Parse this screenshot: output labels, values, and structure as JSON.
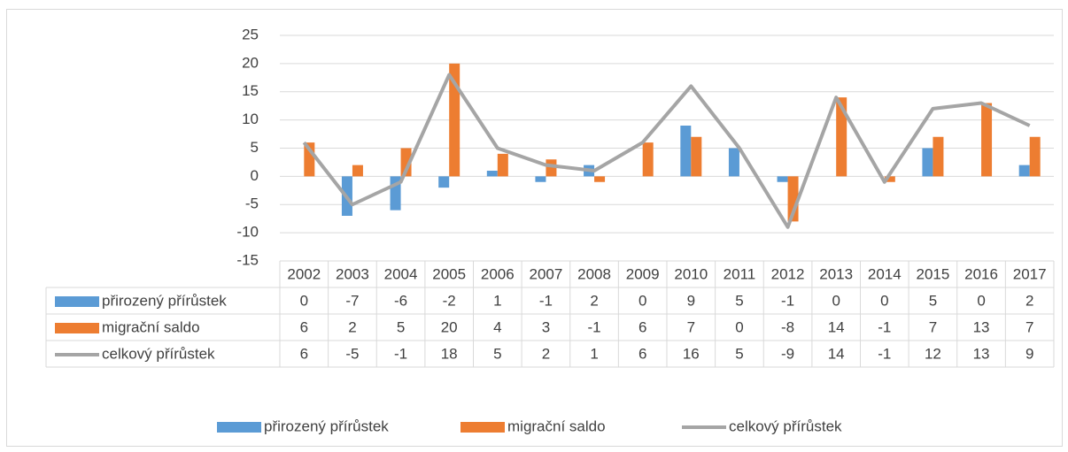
{
  "chart_data": {
    "type": "bar",
    "categories": [
      "2002",
      "2003",
      "2004",
      "2005",
      "2006",
      "2007",
      "2008",
      "2009",
      "2010",
      "2011",
      "2012",
      "2013",
      "2014",
      "2015",
      "2016",
      "2017"
    ],
    "series": [
      {
        "name": "přirozený přírůstek",
        "type": "bar",
        "color": "#5b9bd5",
        "values": [
          0,
          -7,
          -6,
          -2,
          1,
          -1,
          2,
          0,
          9,
          5,
          -1,
          0,
          0,
          5,
          0,
          2
        ]
      },
      {
        "name": "migrační saldo",
        "type": "bar",
        "color": "#ed7d31",
        "values": [
          6,
          2,
          5,
          20,
          4,
          3,
          -1,
          6,
          7,
          0,
          -8,
          14,
          -1,
          7,
          13,
          7
        ]
      },
      {
        "name": "celkový přírůstek",
        "type": "line",
        "color": "#a5a5a5",
        "values": [
          6,
          -5,
          -1,
          18,
          5,
          2,
          1,
          6,
          16,
          5,
          -9,
          14,
          -1,
          12,
          13,
          9
        ]
      }
    ],
    "ylim": [
      -15,
      25
    ],
    "yticks": [
      -15,
      -10,
      -5,
      0,
      5,
      10,
      15,
      20,
      25
    ],
    "grid": true,
    "legend": "bottom",
    "data_table": true
  }
}
